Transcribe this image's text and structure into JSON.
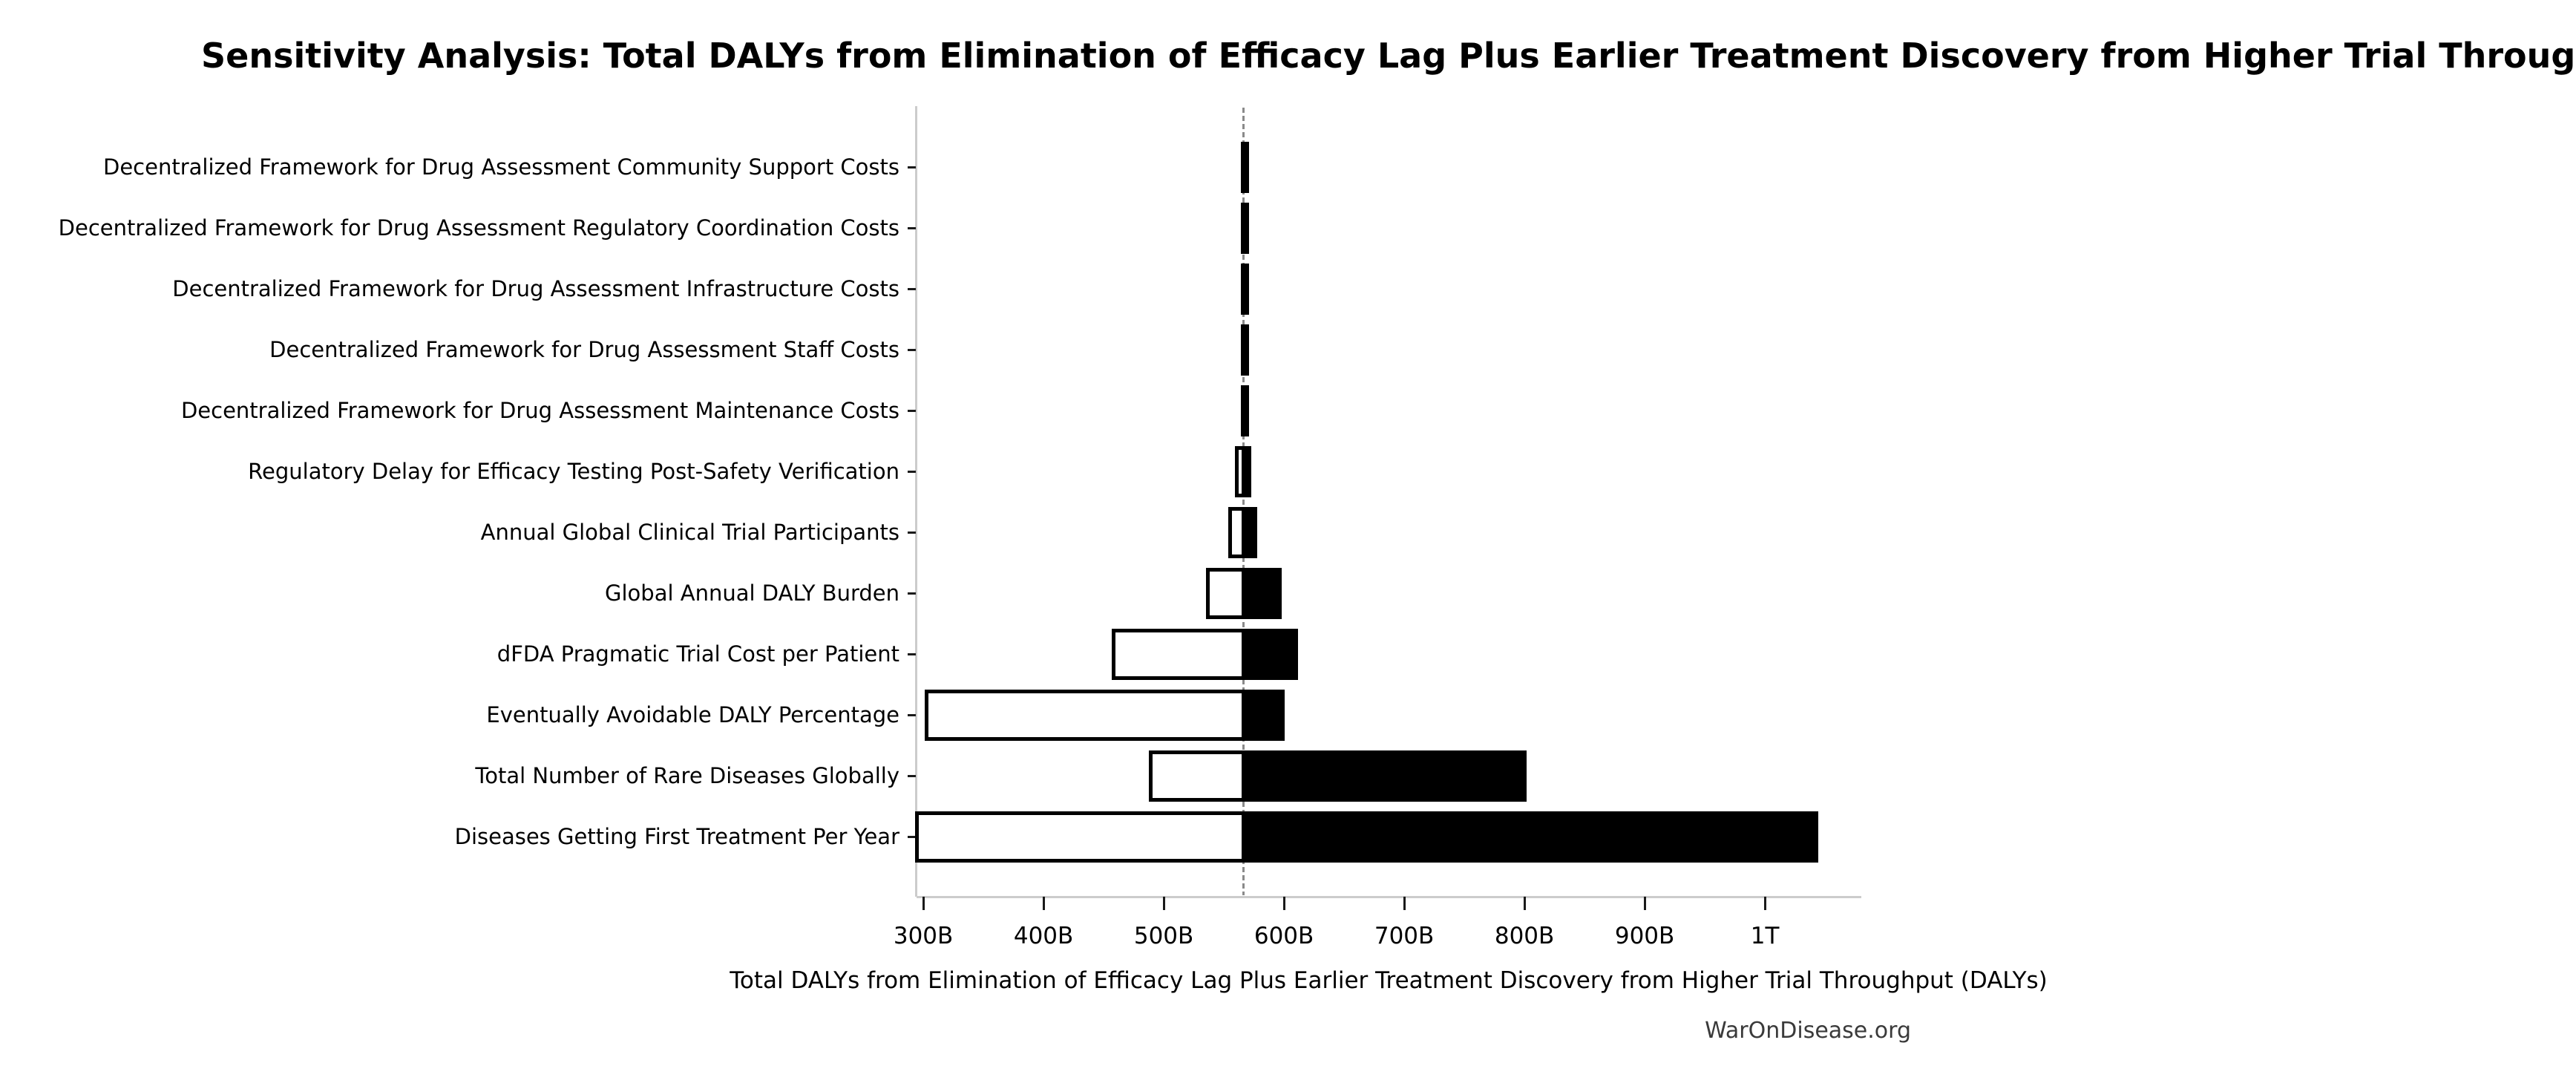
{
  "page": {
    "watermark": "WarOnDisease.org"
  },
  "chart_data": {
    "type": "bar",
    "subtype": "tornado-sensitivity",
    "orientation": "horizontal",
    "title": "Sensitivity Analysis: Total DALYs from Elimination of Efficacy Lag Plus Earlier Treatment Discovery from Higher Trial Throughput",
    "xlabel": "Total DALYs from Elimination of Efficacy Lag Plus Earlier Treatment Discovery from Higher Trial Throughput (DALYs)",
    "value_unit": "billions of DALYs",
    "baseline_value": 566.4,
    "axis_range": [
      294.4,
      1080.2
    ],
    "grid": false,
    "legend": null,
    "colors": {
      "low_fill": "#ffffff",
      "high_fill": "#000000",
      "bar_edge": "#000000",
      "baseline_dash": "#8a8a8a",
      "spine": "#cccccc",
      "tick": "#1a1a1a",
      "watermark_text": "#3a3a3a"
    },
    "x_ticks": [
      {
        "value": 300,
        "label": "300B"
      },
      {
        "value": 400,
        "label": "400B"
      },
      {
        "value": 500,
        "label": "500B"
      },
      {
        "value": 600,
        "label": "600B"
      },
      {
        "value": 700,
        "label": "700B"
      },
      {
        "value": 800,
        "label": "800B"
      },
      {
        "value": 900,
        "label": "900B"
      },
      {
        "value": 1000,
        "label": "1T"
      }
    ],
    "categories": [
      "Decentralized Framework for Drug Assessment Community Support Costs",
      "Decentralized Framework for Drug Assessment Regulatory Coordination Costs",
      "Decentralized Framework for Drug Assessment Infrastructure Costs",
      "Decentralized Framework for Drug Assessment Staff Costs",
      "Decentralized Framework for Drug Assessment Maintenance Costs",
      "Regulatory Delay for Efficacy Testing Post-Safety Verification",
      "Annual Global Clinical Trial Participants",
      "Global Annual DALY Burden",
      "dFDA Pragmatic Trial Cost per Patient",
      "Eventually Avoidable DALY Percentage",
      "Total Number of Rare Diseases Globally",
      "Diseases Getting First Treatment Per Year"
    ],
    "series": [
      {
        "name": "low",
        "values": [
          565.7,
          565.7,
          565.7,
          565.8,
          565.9,
          560.5,
          555.5,
          536.5,
          458.0,
          303.0,
          489.0,
          294.5
        ]
      },
      {
        "name": "high",
        "values": [
          567.5,
          567.5,
          567.4,
          567.4,
          567.3,
          571.5,
          576.0,
          596.5,
          610.0,
          599.0,
          800.0,
          1043.0
        ]
      }
    ]
  }
}
